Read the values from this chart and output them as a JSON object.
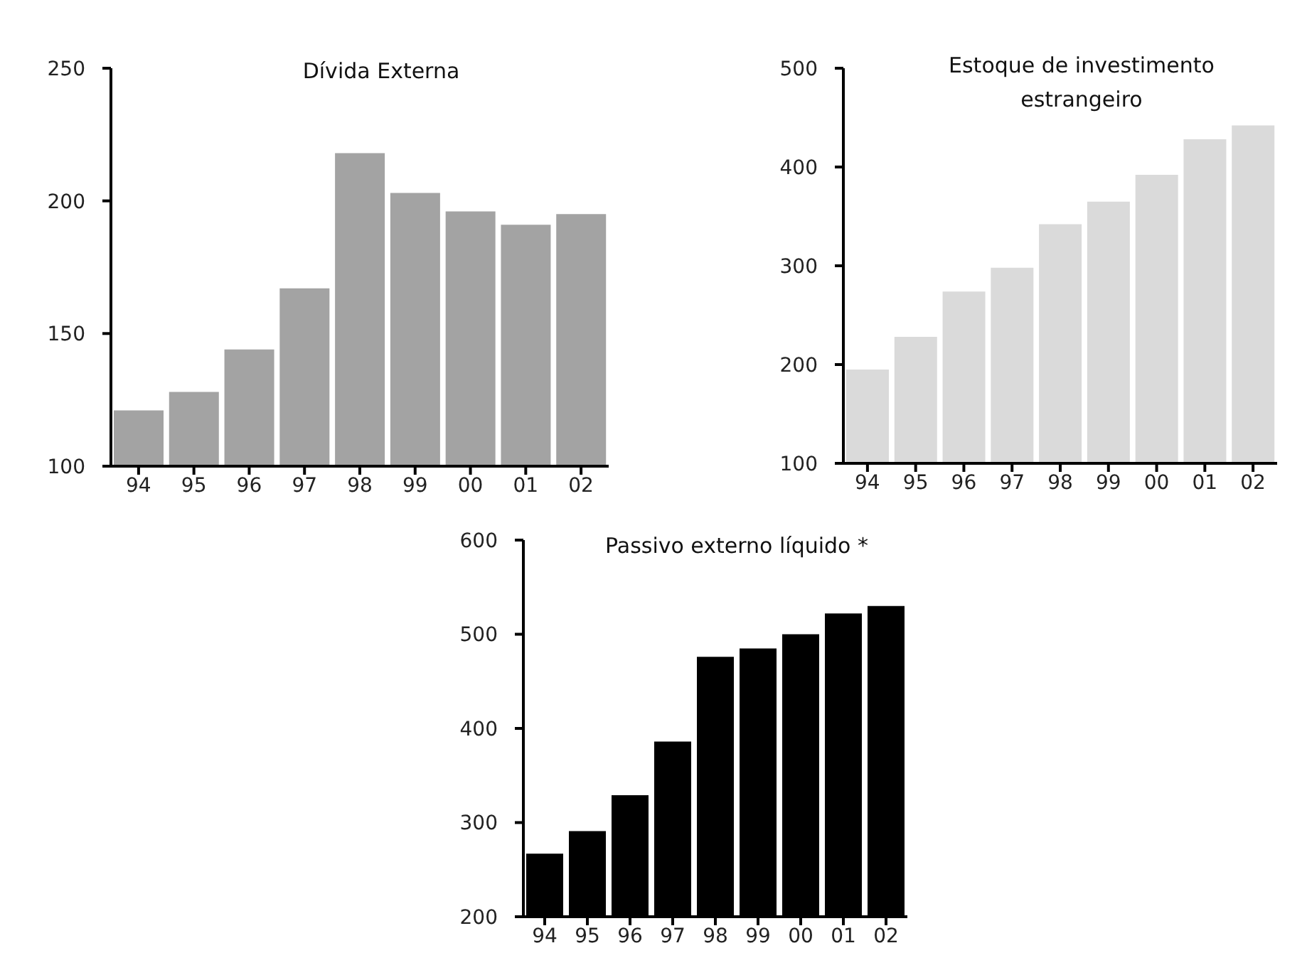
{
  "chart_data": [
    {
      "type": "bar",
      "title": "Dívida Externa",
      "categories": [
        "94",
        "95",
        "96",
        "97",
        "98",
        "99",
        "00",
        "01",
        "02"
      ],
      "values": [
        121,
        128,
        144,
        167,
        218,
        203,
        196,
        191,
        195
      ],
      "color": "#a3a3a3",
      "ylim": [
        100,
        250
      ],
      "yticks": [
        100,
        150,
        200,
        250
      ],
      "grid": false
    },
    {
      "type": "bar",
      "title": "Estoque de investimento estrangeiro",
      "categories": [
        "94",
        "95",
        "96",
        "97",
        "98",
        "99",
        "00",
        "01",
        "02"
      ],
      "values": [
        195,
        228,
        274,
        298,
        342,
        365,
        392,
        428,
        442
      ],
      "color": "#dadada",
      "ylim": [
        100,
        500
      ],
      "yticks": [
        100,
        200,
        300,
        400,
        500
      ],
      "grid": false
    },
    {
      "type": "bar",
      "title": "Passivo externo líquido *",
      "categories": [
        "94",
        "95",
        "96",
        "97",
        "98",
        "99",
        "00",
        "01",
        "02"
      ],
      "values": [
        267,
        291,
        329,
        386,
        476,
        485,
        500,
        522,
        530
      ],
      "color": "#000000",
      "ylim": [
        200,
        600
      ],
      "yticks": [
        200,
        300,
        400,
        500,
        600
      ],
      "grid": false
    }
  ]
}
